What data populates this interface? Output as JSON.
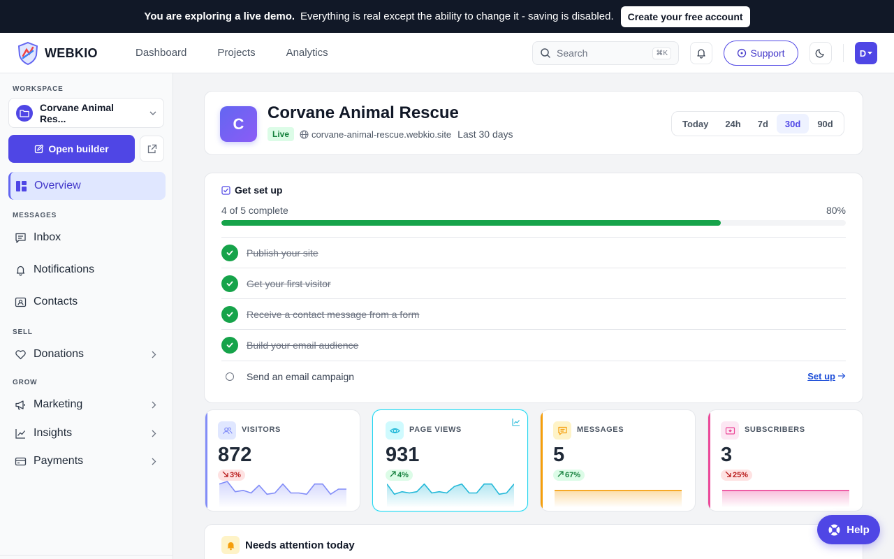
{
  "banner": {
    "lead": "You are exploring a live demo.",
    "text": "Everything is real except the ability to change it - saving is disabled.",
    "cta": "Create your free account"
  },
  "header": {
    "brand": "WEBKIO",
    "nav": [
      "Dashboard",
      "Projects",
      "Analytics"
    ],
    "search_placeholder": "Search",
    "search_shortcut": "⌘K",
    "support": "Support",
    "avatar_initial": "D"
  },
  "sidebar": {
    "workspace_title": "WORKSPACE",
    "workspace_name": "Corvane Animal Res...",
    "open_builder": "Open builder",
    "overview": "Overview",
    "sections": {
      "messages": "MESSAGES",
      "sell": "SELL",
      "grow": "GROW"
    },
    "items": {
      "inbox": "Inbox",
      "notifications": "Notifications",
      "contacts": "Contacts",
      "donations": "Donations",
      "marketing": "Marketing",
      "insights": "Insights",
      "payments": "Payments"
    }
  },
  "site": {
    "initial": "C",
    "name": "Corvane Animal Rescue",
    "status": "Live",
    "domain": "corvane-animal-rescue.webkio.site",
    "range_label": "Last 30 days",
    "range_tabs": [
      "Today",
      "24h",
      "7d",
      "30d",
      "90d"
    ],
    "active_range": "30d"
  },
  "setup": {
    "title": "Get set up",
    "progress_text": "4 of 5 complete",
    "progress_pct": "80%",
    "progress_value": 0.8,
    "steps": [
      {
        "label": "Publish your site",
        "done": true
      },
      {
        "label": "Get your first visitor",
        "done": true
      },
      {
        "label": "Receive a contact message from a form",
        "done": true
      },
      {
        "label": "Build your email audience",
        "done": true
      },
      {
        "label": "Send an email campaign",
        "done": false
      }
    ],
    "action": "Set up"
  },
  "stats": [
    {
      "label": "VISITORS",
      "value": "872",
      "change": "3%",
      "direction": "down",
      "color": "#818cf8",
      "icon_bg": "#e0e7ff",
      "spark": [
        10,
        12,
        4,
        5,
        3,
        9,
        2,
        3,
        10,
        3,
        3,
        2,
        10,
        10,
        2,
        6,
        6
      ]
    },
    {
      "label": "PAGE VIEWS",
      "value": "931",
      "change": "4%",
      "direction": "up",
      "color": "#22b8d8",
      "icon_bg": "#cffafe",
      "spark": [
        10,
        2,
        4,
        3,
        4,
        10,
        3,
        4,
        3,
        8,
        10,
        3,
        3,
        10,
        10,
        2,
        3,
        10
      ]
    },
    {
      "label": "MESSAGES",
      "value": "5",
      "change": "67%",
      "direction": "up",
      "color": "#f59e0b",
      "icon_bg": "#fef3c7",
      "spark": [
        5,
        5
      ]
    },
    {
      "label": "SUBSCRIBERS",
      "value": "3",
      "change": "25%",
      "direction": "down",
      "color": "#ec4899",
      "icon_bg": "#fce7f3",
      "spark": [
        5,
        5
      ]
    }
  ],
  "attention": {
    "title": "Needs attention today"
  },
  "help": "Help"
}
